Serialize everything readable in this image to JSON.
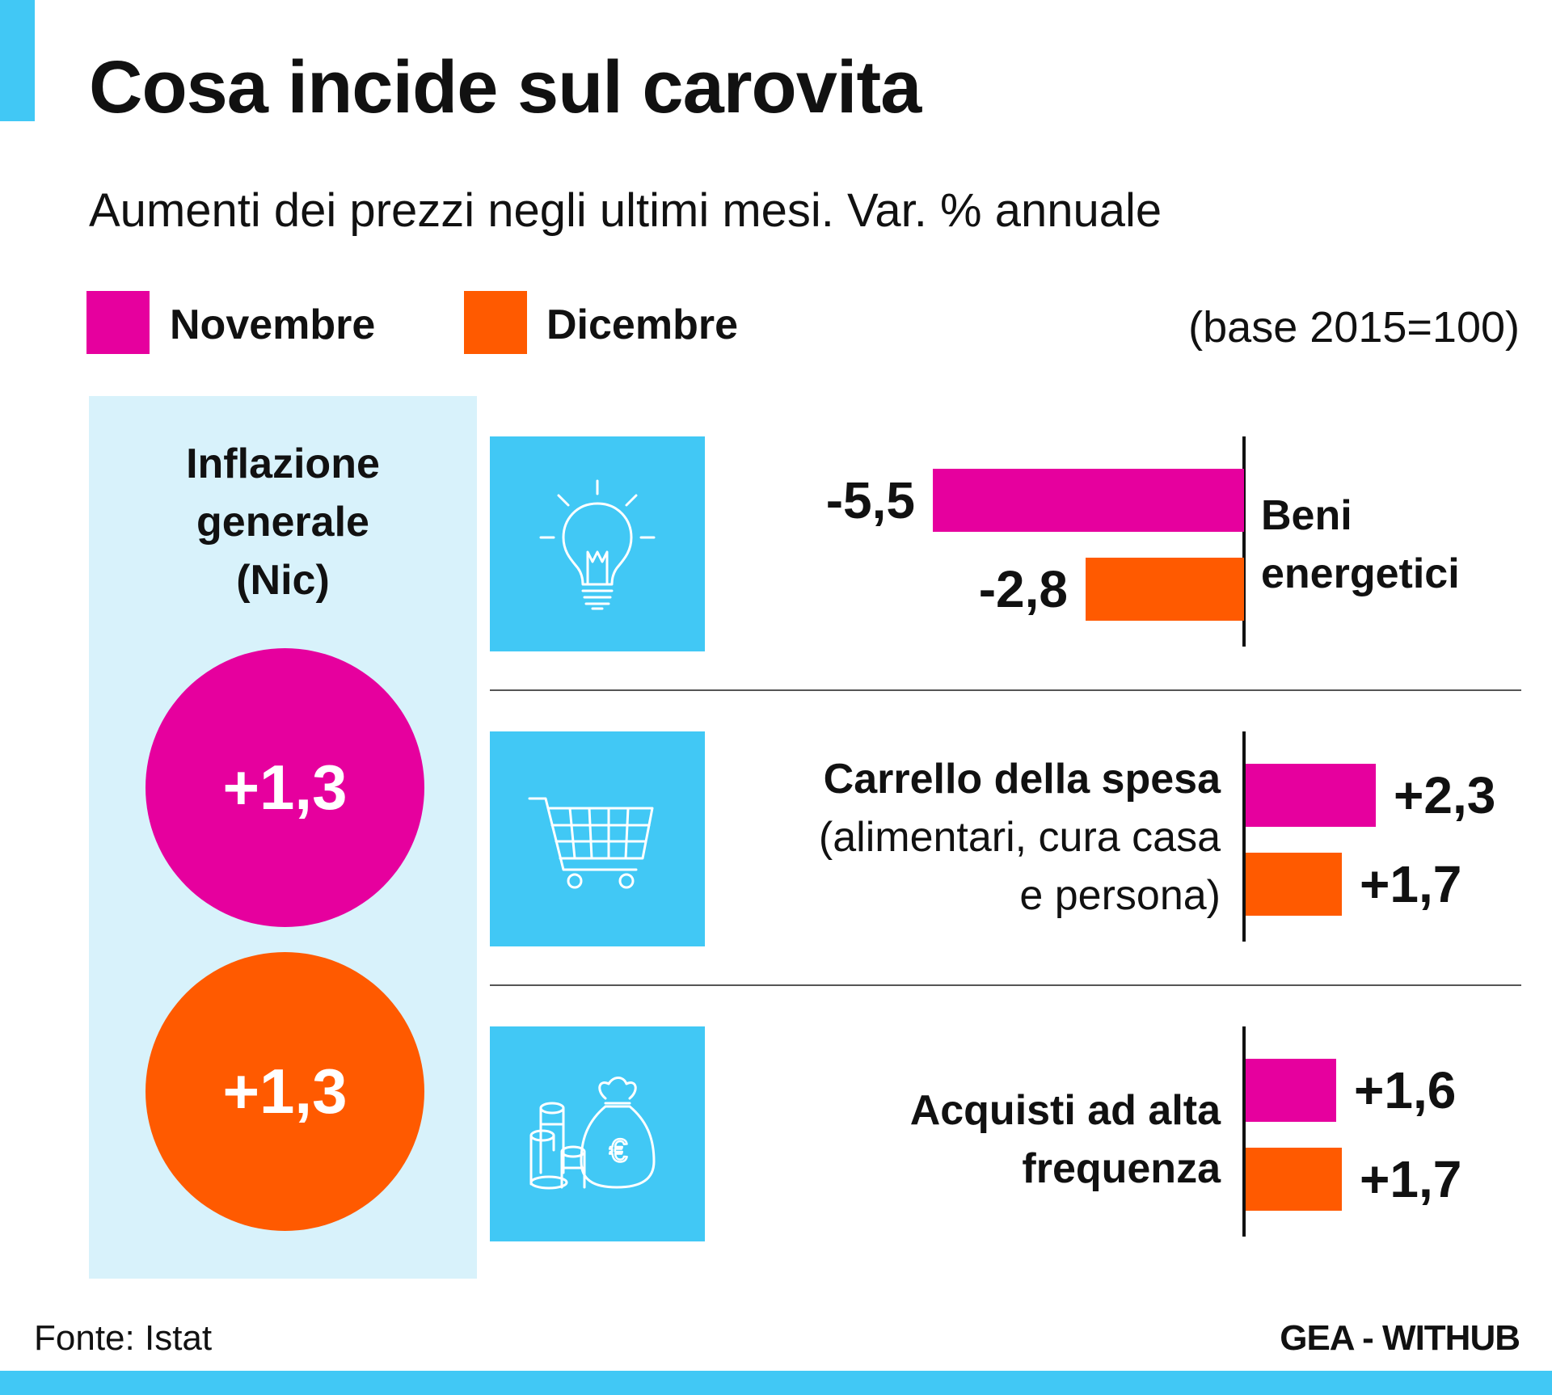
{
  "title": "Cosa incide sul carovita",
  "subtitle": "Aumenti dei prezzi negli ultimi mesi. Var. % annuale",
  "base_note": "(base 2015=100)",
  "colors": {
    "accent": "#41c8f5",
    "panel": "#d8f2fb",
    "novembre": "#e6009e",
    "dicembre": "#ff5a00"
  },
  "legend": [
    {
      "label": "Novembre",
      "color": "#e6009e"
    },
    {
      "label": "Dicembre",
      "color": "#ff5a00"
    }
  ],
  "left_panel": {
    "title_lines": [
      "Inflazione",
      "generale",
      "(Nic)"
    ],
    "values": [
      {
        "label": "+1,3",
        "color": "#e6009e"
      },
      {
        "label": "+1,3",
        "color": "#ff5a00"
      }
    ]
  },
  "icons": [
    "light-bulb-icon",
    "shopping-cart-icon",
    "money-bag-coins-icon"
  ],
  "categories_text": {
    "beni": [
      "Beni",
      "energetici"
    ],
    "carrello_title": "Carrello della spesa",
    "carrello_sub": [
      "(alimentari, cura casa",
      "e persona)"
    ],
    "acquisti": [
      "Acquisti ad alta",
      "frequenza"
    ]
  },
  "chart_data": {
    "type": "bar",
    "orientation": "horizontal",
    "categories": [
      "Beni energetici",
      "Carrello della spesa (alimentari, cura casa e persona)",
      "Acquisti ad alta frequenza"
    ],
    "series": [
      {
        "name": "Novembre",
        "values": [
          -5.5,
          2.3,
          1.6
        ],
        "labels": [
          "-5,5",
          "+2,3",
          "+1,6"
        ]
      },
      {
        "name": "Dicembre",
        "values": [
          -2.8,
          1.7,
          1.7
        ],
        "labels": [
          "-2,8",
          "+1,7",
          "+1,7"
        ]
      }
    ]
  },
  "source": "Fonte: Istat",
  "credit": "GEA - WITHUB"
}
